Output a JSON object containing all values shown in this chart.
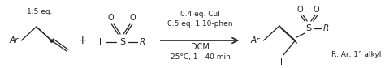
{
  "fig_width": 4.74,
  "fig_height": 0.84,
  "dpi": 100,
  "bg_color": "#ffffff",
  "text_color": "#222222",
  "font_family": "DejaVu Sans",
  "reagent_line1": "0.4 eq. CuI",
  "reagent_line2": "0.5 eq. 1,10-phen",
  "reagent_line3": "DCM",
  "reagent_line4": "25°C, 1 - 40 min",
  "product_r_note": "R: Ar, 1° alkyl"
}
